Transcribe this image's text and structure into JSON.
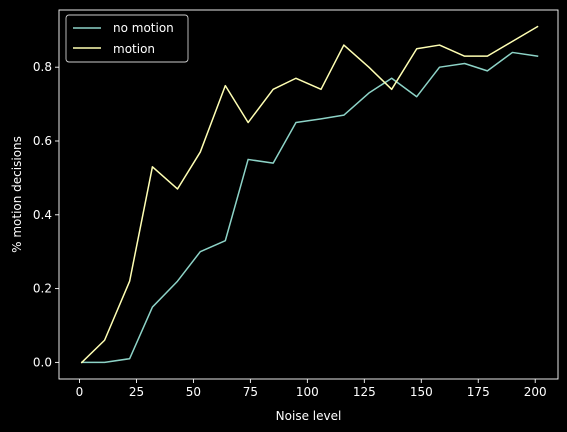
{
  "chart_data": {
    "type": "line",
    "xlabel": "Noise level",
    "ylabel": "% motion decisions",
    "xlim": [
      -9,
      210
    ],
    "ylim": [
      -0.045,
      0.955
    ],
    "xticks": [
      0,
      25,
      50,
      75,
      100,
      125,
      150,
      175,
      200
    ],
    "yticks": [
      0.0,
      0.2,
      0.4,
      0.6,
      0.8
    ],
    "xtick_labels": [
      "0",
      "25",
      "50",
      "75",
      "100",
      "125",
      "150",
      "175",
      "200"
    ],
    "ytick_labels": [
      "0.0",
      "0.2",
      "0.4",
      "0.6",
      "0.8"
    ],
    "grid": false,
    "legend_position": "top-left",
    "background": "#000000",
    "x": [
      1,
      11,
      22,
      32,
      43,
      53,
      64,
      74,
      85,
      95,
      106,
      116,
      127,
      137,
      148,
      158,
      169,
      179,
      190,
      201
    ],
    "series": [
      {
        "name": "no motion",
        "color": "#8dd3c7",
        "values": [
          0.0,
          0.0,
          0.01,
          0.15,
          0.22,
          0.3,
          0.33,
          0.55,
          0.54,
          0.65,
          0.66,
          0.67,
          0.73,
          0.77,
          0.72,
          0.8,
          0.81,
          0.79,
          0.84,
          0.83
        ]
      },
      {
        "name": "motion",
        "color": "#ffffb3",
        "values": [
          0.0,
          0.06,
          0.22,
          0.53,
          0.47,
          0.57,
          0.75,
          0.65,
          0.74,
          0.77,
          0.74,
          0.86,
          0.8,
          0.74,
          0.85,
          0.86,
          0.83,
          0.83,
          0.87,
          0.91
        ]
      }
    ]
  }
}
